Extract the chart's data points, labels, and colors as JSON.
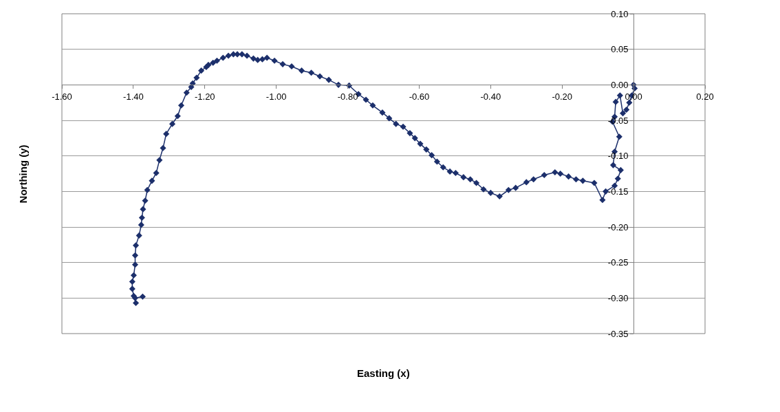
{
  "chart_data": {
    "type": "line",
    "xlabel": "Easting (x)",
    "ylabel": "Northing (y)",
    "marker": "diamond",
    "line_style": "solid",
    "grid": "y",
    "xlim": [
      -1.6,
      0.2
    ],
    "ylim": [
      -0.35,
      0.1
    ],
    "xticks": [
      {
        "value": -1.6,
        "label": "-1.60"
      },
      {
        "value": -1.4,
        "label": "-1.40"
      },
      {
        "value": -1.2,
        "label": "-1.20"
      },
      {
        "value": -1.0,
        "label": "-1.00"
      },
      {
        "value": -0.8,
        "label": "-0.80"
      },
      {
        "value": -0.6,
        "label": "-0.60"
      },
      {
        "value": -0.4,
        "label": "-0.40"
      },
      {
        "value": -0.2,
        "label": "-0.20"
      },
      {
        "value": 0,
        "label": "0.00"
      },
      {
        "value": 0.2,
        "label": "0.20"
      }
    ],
    "yticks": [
      {
        "value": 0.1,
        "label": "0.10"
      },
      {
        "value": 0.05,
        "label": "0.05"
      },
      {
        "value": 0,
        "label": "0.00"
      },
      {
        "value": -0.05,
        "label": "-0.05"
      },
      {
        "value": -0.1,
        "label": "-0.10"
      },
      {
        "value": -0.15,
        "label": "-0.15"
      },
      {
        "value": -0.2,
        "label": "-0.20"
      },
      {
        "value": -0.25,
        "label": "-0.25"
      },
      {
        "value": -0.3,
        "label": "-0.30"
      },
      {
        "value": -0.35,
        "label": "-0.35"
      }
    ],
    "series": [
      {
        "color": "#1c2f6b",
        "x": [
          0.0,
          0.003,
          -0.005,
          -0.012,
          -0.02,
          -0.03,
          -0.038,
          -0.05,
          -0.053,
          -0.059,
          -0.04,
          -0.053,
          -0.057,
          -0.036,
          -0.044,
          -0.053,
          -0.078,
          -0.087,
          -0.11,
          -0.142,
          -0.161,
          -0.182,
          -0.205,
          -0.22,
          -0.25,
          -0.28,
          -0.3,
          -0.33,
          -0.35,
          -0.375,
          -0.4,
          -0.42,
          -0.44,
          -0.457,
          -0.476,
          -0.498,
          -0.514,
          -0.533,
          -0.55,
          -0.565,
          -0.58,
          -0.597,
          -0.612,
          -0.626,
          -0.645,
          -0.665,
          -0.684,
          -0.703,
          -0.73,
          -0.749,
          -0.77,
          -0.796,
          -0.826,
          -0.853,
          -0.878,
          -0.902,
          -0.929,
          -0.957,
          -0.982,
          -1.005,
          -1.026,
          -1.039,
          -1.052,
          -1.064,
          -1.082,
          -1.096,
          -1.109,
          -1.12,
          -1.134,
          -1.149,
          -1.166,
          -1.177,
          -1.19,
          -1.196,
          -1.21,
          -1.223,
          -1.234,
          -1.238,
          -1.251,
          -1.266,
          -1.276,
          -1.291,
          -1.308,
          -1.317,
          -1.327,
          -1.336,
          -1.348,
          -1.361,
          -1.367,
          -1.373,
          -1.376,
          -1.378,
          -1.384,
          -1.393,
          -1.395,
          -1.395,
          -1.399,
          -1.403,
          -1.403,
          -1.399,
          -1.393,
          -1.395,
          -1.374
        ],
        "values": [
          0.0,
          -0.005,
          -0.015,
          -0.025,
          -0.035,
          -0.04,
          -0.015,
          -0.024,
          -0.045,
          -0.052,
          -0.073,
          -0.094,
          -0.113,
          -0.12,
          -0.132,
          -0.142,
          -0.15,
          -0.162,
          -0.138,
          -0.135,
          -0.133,
          -0.129,
          -0.125,
          -0.123,
          -0.127,
          -0.133,
          -0.137,
          -0.145,
          -0.148,
          -0.157,
          -0.152,
          -0.147,
          -0.138,
          -0.133,
          -0.13,
          -0.124,
          -0.122,
          -0.116,
          -0.108,
          -0.099,
          -0.091,
          -0.083,
          -0.075,
          -0.068,
          -0.059,
          -0.055,
          -0.047,
          -0.039,
          -0.029,
          -0.021,
          -0.013,
          -0.001,
          0.0,
          0.007,
          0.012,
          0.017,
          0.02,
          0.026,
          0.029,
          0.034,
          0.038,
          0.036,
          0.035,
          0.037,
          0.041,
          0.043,
          0.043,
          0.043,
          0.041,
          0.038,
          0.034,
          0.031,
          0.028,
          0.025,
          0.02,
          0.01,
          0.002,
          -0.003,
          -0.011,
          -0.029,
          -0.044,
          -0.055,
          -0.069,
          -0.089,
          -0.106,
          -0.124,
          -0.135,
          -0.148,
          -0.163,
          -0.175,
          -0.187,
          -0.197,
          -0.212,
          -0.226,
          -0.24,
          -0.253,
          -0.268,
          -0.277,
          -0.287,
          -0.297,
          -0.307,
          -0.3,
          -0.298
        ]
      }
    ]
  }
}
